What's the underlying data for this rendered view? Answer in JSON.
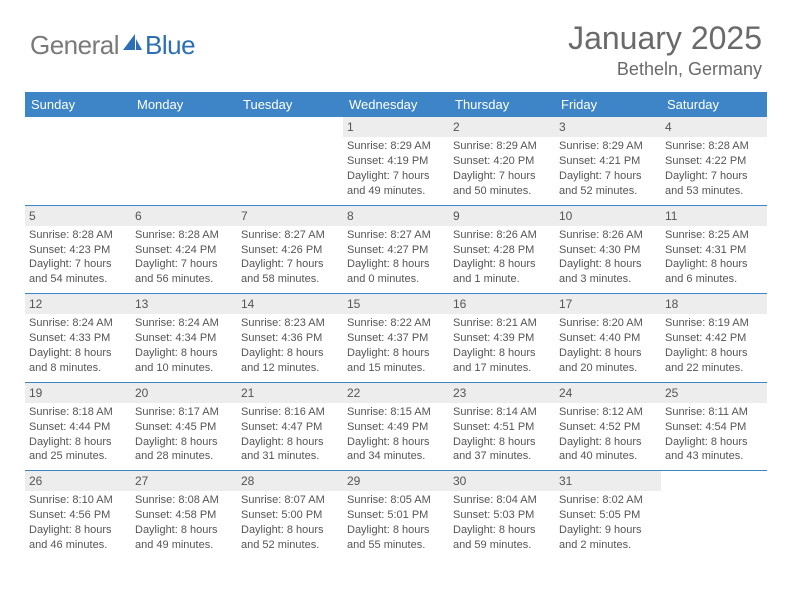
{
  "logo": {
    "part1": "General",
    "part2": "Blue"
  },
  "title": "January 2025",
  "location": "Betheln, Germany",
  "colors": {
    "header_bg": "#3d85c6",
    "header_text": "#ffffff",
    "daynum_bg": "#ededed",
    "rule": "#3d85c6",
    "text": "#555555",
    "logo_gray": "#7a7a7a",
    "logo_blue": "#2d6fb5"
  },
  "weekdays": [
    "Sunday",
    "Monday",
    "Tuesday",
    "Wednesday",
    "Thursday",
    "Friday",
    "Saturday"
  ],
  "weeks": [
    [
      null,
      null,
      null,
      {
        "n": "1",
        "sr": "8:29 AM",
        "ss": "4:19 PM",
        "dl": "7 hours and 49 minutes."
      },
      {
        "n": "2",
        "sr": "8:29 AM",
        "ss": "4:20 PM",
        "dl": "7 hours and 50 minutes."
      },
      {
        "n": "3",
        "sr": "8:29 AM",
        "ss": "4:21 PM",
        "dl": "7 hours and 52 minutes."
      },
      {
        "n": "4",
        "sr": "8:28 AM",
        "ss": "4:22 PM",
        "dl": "7 hours and 53 minutes."
      }
    ],
    [
      {
        "n": "5",
        "sr": "8:28 AM",
        "ss": "4:23 PM",
        "dl": "7 hours and 54 minutes."
      },
      {
        "n": "6",
        "sr": "8:28 AM",
        "ss": "4:24 PM",
        "dl": "7 hours and 56 minutes."
      },
      {
        "n": "7",
        "sr": "8:27 AM",
        "ss": "4:26 PM",
        "dl": "7 hours and 58 minutes."
      },
      {
        "n": "8",
        "sr": "8:27 AM",
        "ss": "4:27 PM",
        "dl": "8 hours and 0 minutes."
      },
      {
        "n": "9",
        "sr": "8:26 AM",
        "ss": "4:28 PM",
        "dl": "8 hours and 1 minute."
      },
      {
        "n": "10",
        "sr": "8:26 AM",
        "ss": "4:30 PM",
        "dl": "8 hours and 3 minutes."
      },
      {
        "n": "11",
        "sr": "8:25 AM",
        "ss": "4:31 PM",
        "dl": "8 hours and 6 minutes."
      }
    ],
    [
      {
        "n": "12",
        "sr": "8:24 AM",
        "ss": "4:33 PM",
        "dl": "8 hours and 8 minutes."
      },
      {
        "n": "13",
        "sr": "8:24 AM",
        "ss": "4:34 PM",
        "dl": "8 hours and 10 minutes."
      },
      {
        "n": "14",
        "sr": "8:23 AM",
        "ss": "4:36 PM",
        "dl": "8 hours and 12 minutes."
      },
      {
        "n": "15",
        "sr": "8:22 AM",
        "ss": "4:37 PM",
        "dl": "8 hours and 15 minutes."
      },
      {
        "n": "16",
        "sr": "8:21 AM",
        "ss": "4:39 PM",
        "dl": "8 hours and 17 minutes."
      },
      {
        "n": "17",
        "sr": "8:20 AM",
        "ss": "4:40 PM",
        "dl": "8 hours and 20 minutes."
      },
      {
        "n": "18",
        "sr": "8:19 AM",
        "ss": "4:42 PM",
        "dl": "8 hours and 22 minutes."
      }
    ],
    [
      {
        "n": "19",
        "sr": "8:18 AM",
        "ss": "4:44 PM",
        "dl": "8 hours and 25 minutes."
      },
      {
        "n": "20",
        "sr": "8:17 AM",
        "ss": "4:45 PM",
        "dl": "8 hours and 28 minutes."
      },
      {
        "n": "21",
        "sr": "8:16 AM",
        "ss": "4:47 PM",
        "dl": "8 hours and 31 minutes."
      },
      {
        "n": "22",
        "sr": "8:15 AM",
        "ss": "4:49 PM",
        "dl": "8 hours and 34 minutes."
      },
      {
        "n": "23",
        "sr": "8:14 AM",
        "ss": "4:51 PM",
        "dl": "8 hours and 37 minutes."
      },
      {
        "n": "24",
        "sr": "8:12 AM",
        "ss": "4:52 PM",
        "dl": "8 hours and 40 minutes."
      },
      {
        "n": "25",
        "sr": "8:11 AM",
        "ss": "4:54 PM",
        "dl": "8 hours and 43 minutes."
      }
    ],
    [
      {
        "n": "26",
        "sr": "8:10 AM",
        "ss": "4:56 PM",
        "dl": "8 hours and 46 minutes."
      },
      {
        "n": "27",
        "sr": "8:08 AM",
        "ss": "4:58 PM",
        "dl": "8 hours and 49 minutes."
      },
      {
        "n": "28",
        "sr": "8:07 AM",
        "ss": "5:00 PM",
        "dl": "8 hours and 52 minutes."
      },
      {
        "n": "29",
        "sr": "8:05 AM",
        "ss": "5:01 PM",
        "dl": "8 hours and 55 minutes."
      },
      {
        "n": "30",
        "sr": "8:04 AM",
        "ss": "5:03 PM",
        "dl": "8 hours and 59 minutes."
      },
      {
        "n": "31",
        "sr": "8:02 AM",
        "ss": "5:05 PM",
        "dl": "9 hours and 2 minutes."
      },
      null
    ]
  ],
  "labels": {
    "sunrise": "Sunrise:",
    "sunset": "Sunset:",
    "daylight": "Daylight:"
  }
}
